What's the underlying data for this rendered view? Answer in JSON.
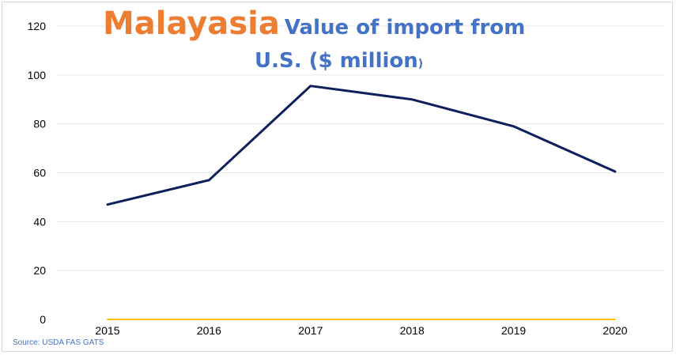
{
  "title": {
    "country": "Malayasia",
    "line1": "Value of import from",
    "line2": "U.S. ($ million",
    "line2_paren": ")"
  },
  "source": "Source: USDA FAS GATS",
  "colors": {
    "title_country": "#ed7d31",
    "title_main": "#4472c4",
    "series_line": "#0d1f5c",
    "baseline": "#ffc000",
    "grid": "#e6e6e6"
  },
  "chart_data": {
    "type": "line",
    "title": "Malayasia Value of import from U.S. ($ million)",
    "categories": [
      "2015",
      "2016",
      "2017",
      "2018",
      "2019",
      "2020"
    ],
    "series": [
      {
        "values": [
          47,
          57,
          95.5,
          90,
          79,
          60.5
        ]
      },
      {
        "values": [
          0,
          0,
          0,
          0,
          0,
          0
        ]
      }
    ],
    "ylim": [
      0,
      120
    ],
    "yticks": [
      0,
      20,
      40,
      60,
      80,
      100,
      120
    ],
    "grid": true,
    "xlabel": "",
    "ylabel": ""
  }
}
